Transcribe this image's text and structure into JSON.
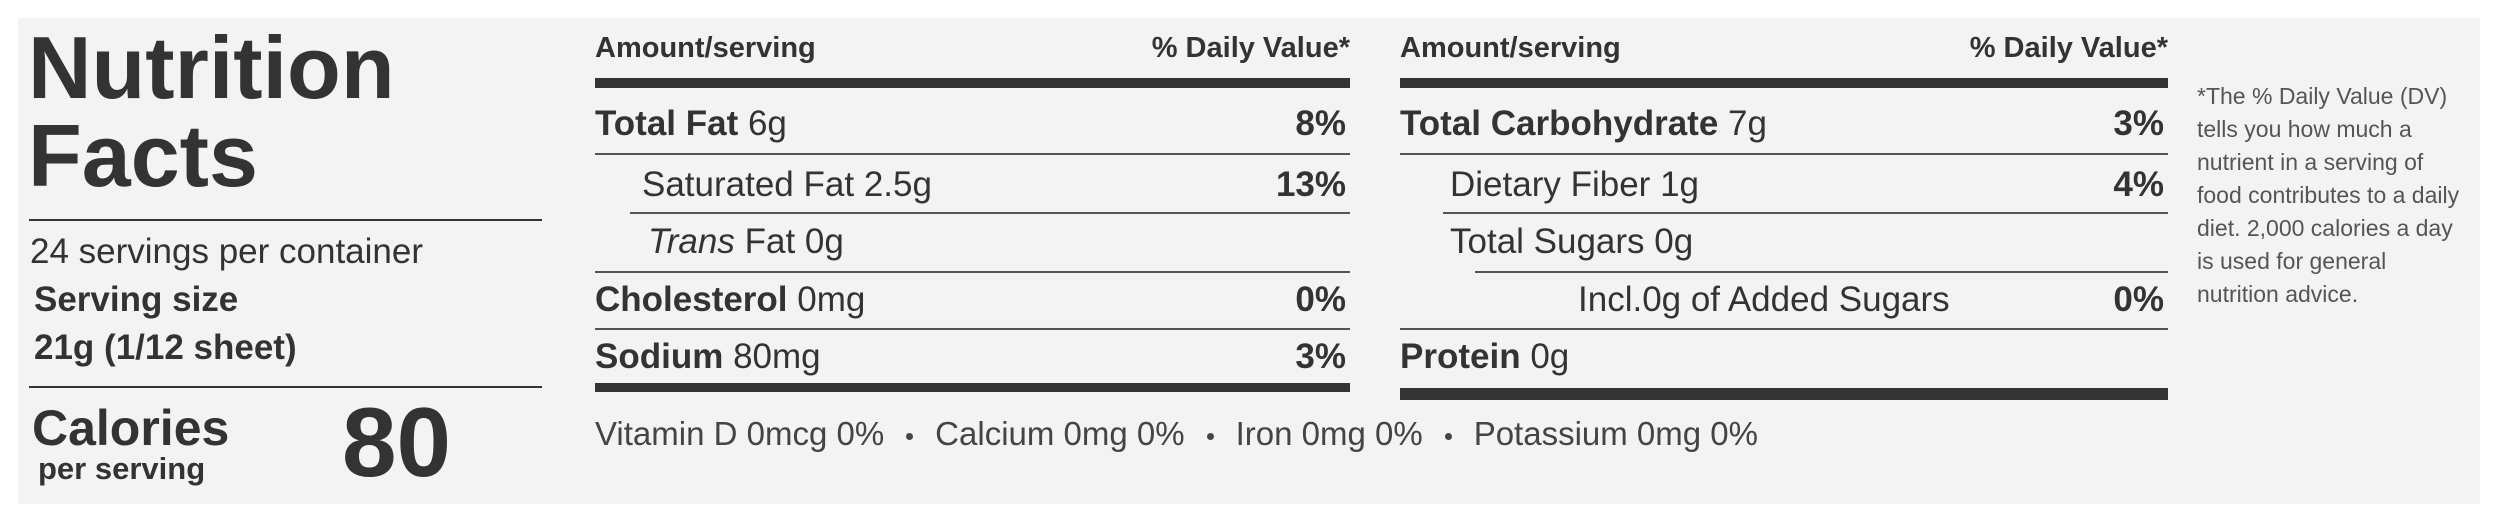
{
  "header": {
    "title_line1": "Nutrition",
    "title_line2": "Facts",
    "servings": "24 servings per container",
    "serving_size_label": "Serving size",
    "serving_size": "21g (1/12 sheet)",
    "calories_label": "Calories",
    "calories_sub": "per serving",
    "calories": 80
  },
  "columns": [
    {
      "amount_header": "Amount/serving",
      "dv_header": "% Daily Value*",
      "rows": [
        {
          "name": "Total Fat",
          "amount": "6g",
          "dv": "8%"
        },
        {
          "name": "Saturated Fat",
          "amount": "2.5g",
          "dv": "13%"
        },
        {
          "prefix": "Trans",
          "name": "Fat",
          "amount": "0g"
        },
        {
          "name": "Cholesterol",
          "amount": "0mg",
          "dv": "0%"
        },
        {
          "name": "Sodium",
          "amount": "80mg",
          "dv": "3%"
        }
      ]
    },
    {
      "amount_header": "Amount/serving",
      "dv_header": "% Daily Value*",
      "rows": [
        {
          "name": "Total Carbohydrate",
          "amount": "7g",
          "dv": "3%"
        },
        {
          "name": "Dietary Fiber",
          "amount": "1g",
          "dv": "4%"
        },
        {
          "name": "Total Sugars",
          "amount": "0g"
        },
        {
          "name": "Incl.0g of Added Sugars",
          "dv": "0%"
        },
        {
          "name": "Protein",
          "amount": "0g"
        }
      ]
    }
  ],
  "vitamins": [
    "Vitamin D 0mcg 0%",
    "Calcium 0mg 0%",
    "Iron 0mg 0%",
    "Potassium 0mg 0%"
  ],
  "footnote": "*The % Daily Value (DV) tells you how much a nutrient in a serving of food contributes to a daily diet. 2,000 calories a day is used for general nutrition advice."
}
